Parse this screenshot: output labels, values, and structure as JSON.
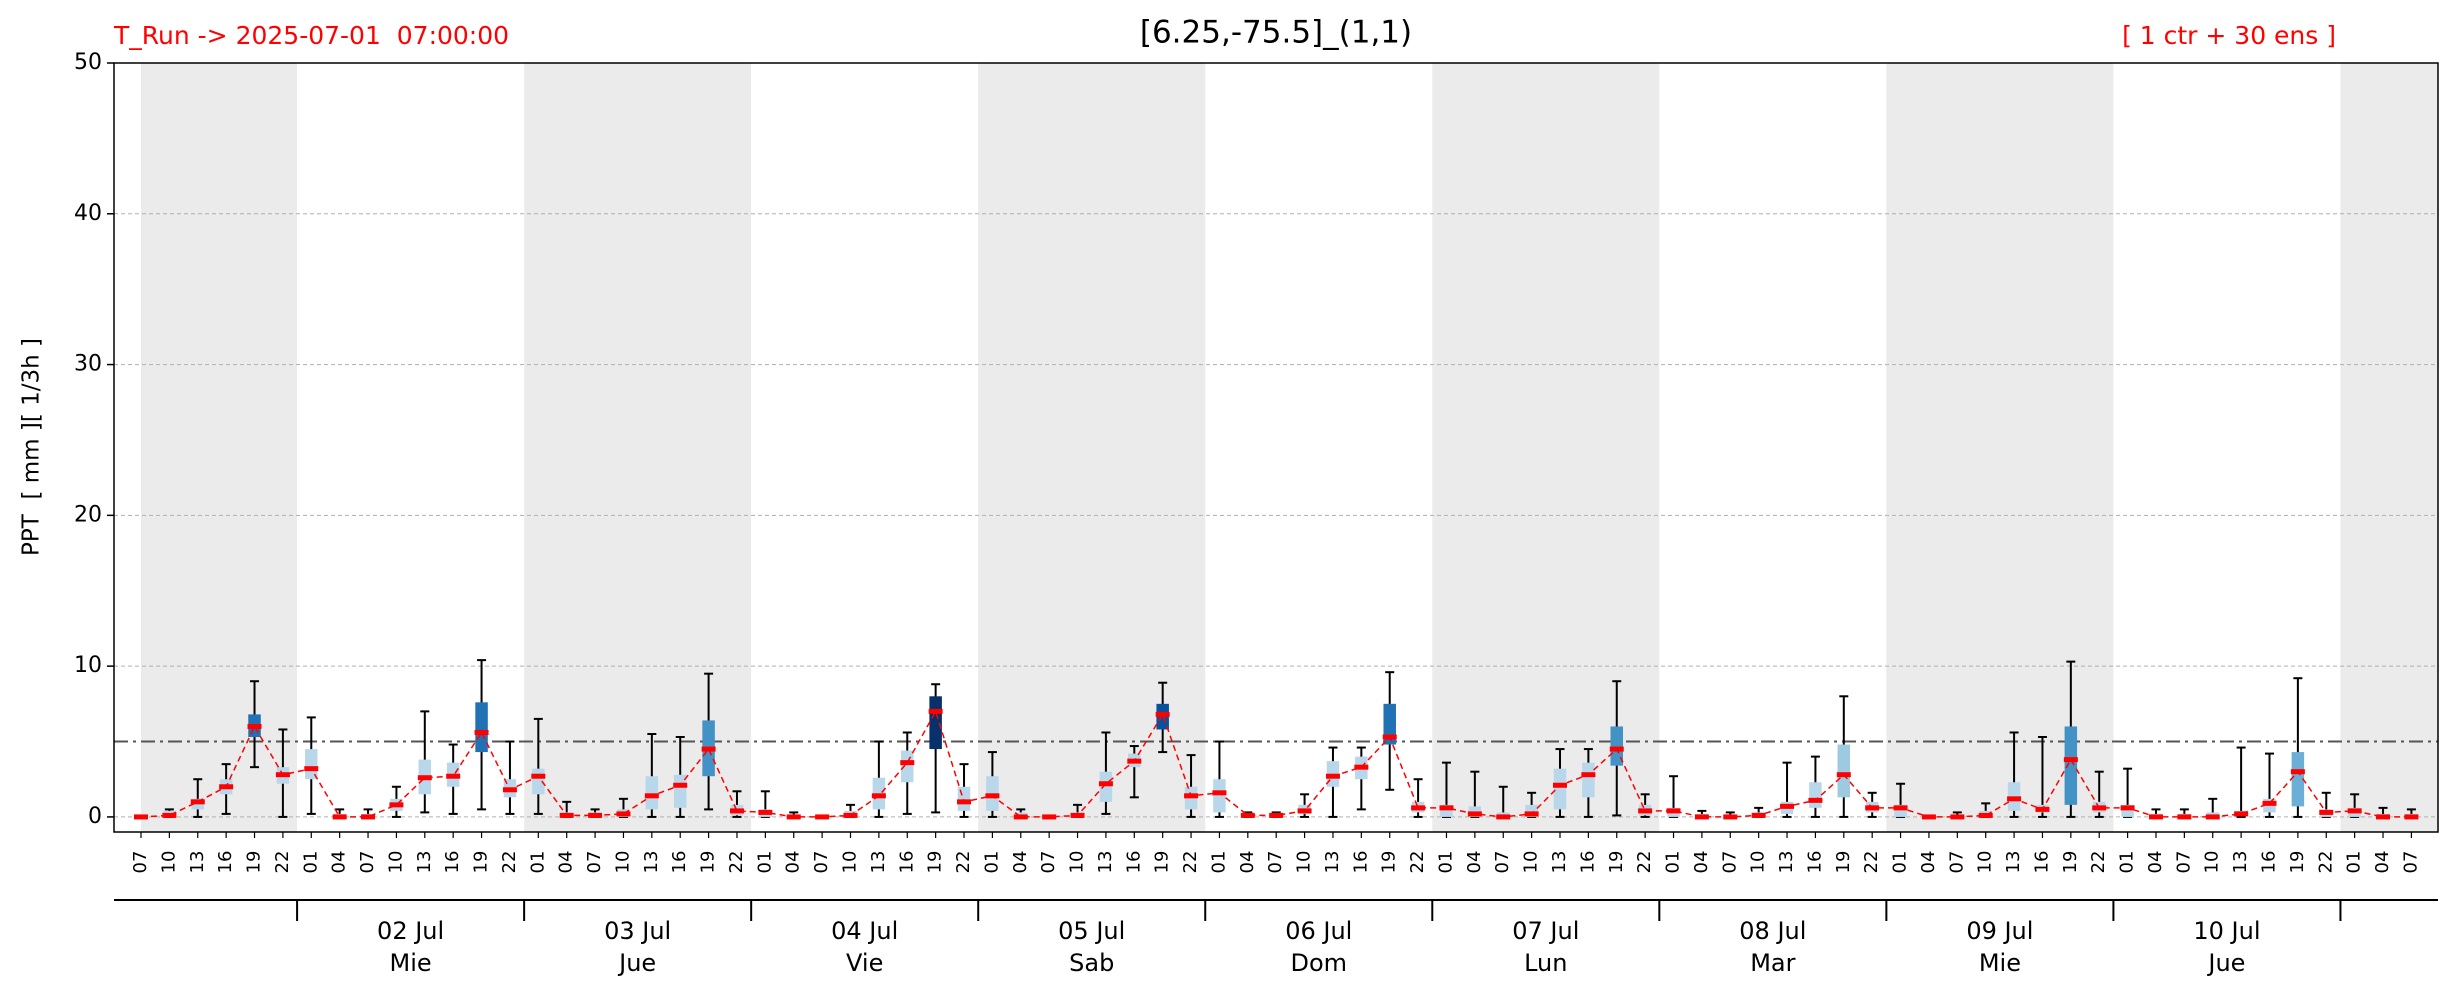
{
  "chart_data": {
    "type": "boxplot",
    "title": "[6.25,-75.5]_(1,1)",
    "run_label": "T_Run -> 2025-07-01  07:00:00",
    "members_label": "[ 1 ctr + 30 ens ]",
    "ylabel": "PPT  [ mm ][ 1/3h ]",
    "ylim": [
      -1,
      50
    ],
    "yticks": [
      0,
      10,
      20,
      30,
      40,
      50
    ],
    "grid": true,
    "threshold": 5,
    "shade_alternate_days": true,
    "median_line_color": "#ff0000",
    "days": [
      {
        "date": null,
        "weekday": null,
        "hours": [
          "07",
          "10",
          "13",
          "16",
          "19",
          "22"
        ]
      },
      {
        "date": "02 Jul",
        "weekday": "Mie",
        "hours": [
          "01",
          "04",
          "07",
          "10",
          "13",
          "16",
          "19",
          "22"
        ]
      },
      {
        "date": "03 Jul",
        "weekday": "Jue",
        "hours": [
          "01",
          "04",
          "07",
          "10",
          "13",
          "16",
          "19",
          "22"
        ]
      },
      {
        "date": "04 Jul",
        "weekday": "Vie",
        "hours": [
          "01",
          "04",
          "07",
          "10",
          "13",
          "16",
          "19",
          "22"
        ]
      },
      {
        "date": "05 Jul",
        "weekday": "Sab",
        "hours": [
          "01",
          "04",
          "07",
          "10",
          "13",
          "16",
          "19",
          "22"
        ]
      },
      {
        "date": "06 Jul",
        "weekday": "Dom",
        "hours": [
          "01",
          "04",
          "07",
          "10",
          "13",
          "16",
          "19",
          "22"
        ]
      },
      {
        "date": "07 Jul",
        "weekday": "Lun",
        "hours": [
          "01",
          "04",
          "07",
          "10",
          "13",
          "16",
          "19",
          "22"
        ]
      },
      {
        "date": "08 Jul",
        "weekday": "Mar",
        "hours": [
          "01",
          "04",
          "07",
          "10",
          "13",
          "16",
          "19",
          "22"
        ]
      },
      {
        "date": "09 Jul",
        "weekday": "Mie",
        "hours": [
          "01",
          "04",
          "07",
          "10",
          "13",
          "16",
          "19",
          "22"
        ]
      },
      {
        "date": "10 Jul",
        "weekday": "Jue",
        "hours": [
          "01",
          "04",
          "07",
          "10",
          "13",
          "16",
          "19",
          "22"
        ]
      },
      {
        "date": null,
        "weekday": null,
        "hours": [
          "01",
          "04",
          "07"
        ]
      }
    ],
    "low": [
      0,
      0,
      0,
      0.2,
      3.3,
      0,
      0.2,
      0,
      0,
      0,
      0.3,
      0.2,
      0.5,
      0.2,
      0.2,
      0,
      0,
      0,
      0,
      0,
      0.5,
      0,
      0,
      0,
      0,
      0,
      0,
      0.2,
      0.3,
      0,
      0,
      0,
      0,
      0,
      0.2,
      1.3,
      4.3,
      0,
      0,
      0,
      0,
      0,
      0,
      0.5,
      1.8,
      0,
      0,
      0,
      0,
      0,
      0,
      0,
      0.1,
      0,
      0,
      0,
      0,
      0,
      0,
      0,
      0,
      0,
      0,
      0,
      0,
      0,
      0,
      0,
      0,
      0,
      0,
      0,
      0,
      0,
      0,
      0,
      0,
      0,
      0,
      0,
      0
    ],
    "q1": [
      0,
      0,
      0.5,
      1.5,
      5.3,
      2.2,
      2.5,
      0,
      0,
      0.4,
      1.5,
      2,
      4.3,
      1.3,
      1.5,
      0,
      0,
      0,
      0.5,
      0.6,
      2.7,
      0.1,
      0,
      0,
      0,
      0,
      0.5,
      2.3,
      4.5,
      0.4,
      0.4,
      0,
      0,
      0,
      1,
      3.3,
      5.8,
      0.5,
      0.3,
      0,
      0,
      0.2,
      2,
      2.5,
      4.8,
      0.3,
      0,
      0,
      0,
      0,
      0.5,
      1.3,
      3.4,
      0.1,
      0,
      0,
      0,
      0,
      0.2,
      0.6,
      1.3,
      0.3,
      0,
      0,
      0,
      0,
      0.4,
      0.3,
      0.8,
      0.3,
      0,
      0,
      0,
      0,
      0.1,
      0.3,
      0.7,
      0,
      0,
      0,
      0
    ],
    "median": [
      0,
      0.1,
      1,
      2,
      6,
      2.8,
      3.2,
      0,
      0,
      0.8,
      2.6,
      2.7,
      5.6,
      1.8,
      2.7,
      0.1,
      0.1,
      0.2,
      1.4,
      2.1,
      4.5,
      0.4,
      0.3,
      0,
      0,
      0.1,
      1.4,
      3.6,
      7,
      1,
      1.4,
      0,
      0,
      0.1,
      2.2,
      3.7,
      6.8,
      1.4,
      1.6,
      0.1,
      0.1,
      0.4,
      2.7,
      3.3,
      5.3,
      0.6,
      0.6,
      0.2,
      0,
      0.2,
      2.1,
      2.8,
      4.5,
      0.4,
      0.4,
      0,
      0,
      0.1,
      0.7,
      1.1,
      2.8,
      0.6,
      0.6,
      0,
      0,
      0.1,
      1.2,
      0.5,
      3.8,
      0.6,
      0.6,
      0,
      0,
      0,
      0.2,
      0.9,
      3,
      0.3,
      0.4,
      0,
      0
    ],
    "q3": [
      0,
      0.4,
      1.2,
      2.5,
      6.8,
      3.3,
      4.5,
      0.2,
      0.2,
      1.2,
      3.8,
      3.6,
      7.6,
      2.5,
      3.2,
      0.3,
      0.3,
      0.5,
      2.7,
      2.8,
      6.4,
      0.8,
      0.5,
      0.1,
      0,
      0.4,
      2.6,
      4.4,
      8,
      2,
      2.7,
      0.3,
      0,
      0.3,
      3,
      4.2,
      7.5,
      2,
      2.5,
      0.2,
      0.2,
      0.8,
      3.7,
      4,
      7.5,
      1,
      0.8,
      0.7,
      0.3,
      0.8,
      3.2,
      3.6,
      6,
      0.8,
      0.6,
      0.2,
      0.1,
      0.3,
      1,
      2.3,
      4.8,
      1,
      0.8,
      0,
      0.1,
      0.4,
      2.3,
      0.8,
      6,
      1,
      0.8,
      0.2,
      0.2,
      0.3,
      0.4,
      1.2,
      4.3,
      0.5,
      0.6,
      0.2,
      0.2
    ],
    "high": [
      0,
      0.5,
      2.5,
      3.5,
      9,
      5.8,
      6.6,
      0.5,
      0.5,
      2,
      7,
      4.8,
      10.4,
      5,
      6.5,
      1,
      0.5,
      1.2,
      5.5,
      5.3,
      9.5,
      1.7,
      1.7,
      0.3,
      0,
      0.8,
      5,
      5.6,
      8.8,
      3.5,
      4.3,
      0.5,
      0,
      0.8,
      5.6,
      4.7,
      8.9,
      4.1,
      5,
      0.3,
      0.3,
      1.5,
      4.6,
      4.6,
      9.6,
      2.5,
      3.6,
      3,
      2,
      1.6,
      4.5,
      4.5,
      9,
      1.5,
      2.7,
      0.4,
      0.3,
      0.6,
      3.6,
      4,
      8,
      1.6,
      2.2,
      0,
      0.3,
      0.9,
      5.6,
      5.3,
      10.3,
      3,
      3.2,
      0.5,
      0.5,
      1.2,
      4.6,
      4.2,
      9.2,
      1.6,
      1.5,
      0.6,
      0.5
    ],
    "box_colors": [
      "#b9d7ea",
      "#b9d7ea",
      "#b9d7ea",
      "#b9d7ea",
      "#2171b5",
      "#b9d7ea",
      "#b9d7ea",
      "#b9d7ea",
      "#b9d7ea",
      "#b9d7ea",
      "#b9d7ea",
      "#b9d7ea",
      "#2171b5",
      "#b9d7ea",
      "#b9d7ea",
      "#b9d7ea",
      "#b9d7ea",
      "#b9d7ea",
      "#b9d7ea",
      "#b9d7ea",
      "#4292c6",
      "#b9d7ea",
      "#b9d7ea",
      "#b9d7ea",
      "#b9d7ea",
      "#b9d7ea",
      "#b9d7ea",
      "#b9d7ea",
      "#08306b",
      "#b9d7ea",
      "#b9d7ea",
      "#b9d7ea",
      "#b9d7ea",
      "#b9d7ea",
      "#b9d7ea",
      "#b9d7ea",
      "#08519c",
      "#b9d7ea",
      "#b9d7ea",
      "#b9d7ea",
      "#b9d7ea",
      "#b9d7ea",
      "#b9d7ea",
      "#b9d7ea",
      "#2171b5",
      "#b9d7ea",
      "#b9d7ea",
      "#b9d7ea",
      "#b9d7ea",
      "#b9d7ea",
      "#b9d7ea",
      "#b9d7ea",
      "#4292c6",
      "#b9d7ea",
      "#b9d7ea",
      "#b9d7ea",
      "#b9d7ea",
      "#b9d7ea",
      "#b9d7ea",
      "#b9d7ea",
      "#9ecae1",
      "#b9d7ea",
      "#b9d7ea",
      "#b9d7ea",
      "#b9d7ea",
      "#b9d7ea",
      "#b9d7ea",
      "#b9d7ea",
      "#4292c6",
      "#b9d7ea",
      "#b9d7ea",
      "#b9d7ea",
      "#b9d7ea",
      "#b9d7ea",
      "#b9d7ea",
      "#b9d7ea",
      "#6baed6",
      "#b9d7ea",
      "#b9d7ea",
      "#b9d7ea",
      "#b9d7ea"
    ]
  }
}
